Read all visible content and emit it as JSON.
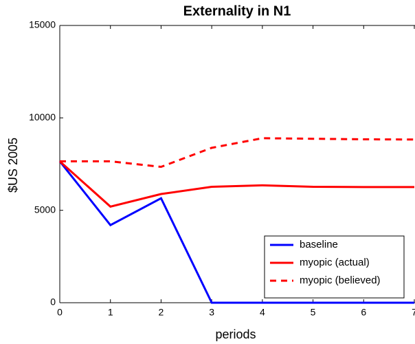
{
  "chart_data": {
    "type": "line",
    "title": "Externality in N1",
    "x_label": "periods",
    "y_label": "$US 2005",
    "x": [
      0,
      1,
      2,
      3,
      4,
      5,
      6,
      7
    ],
    "series": [
      {
        "name": "baseline",
        "color": "#0000ff",
        "dash": "solid",
        "values": [
          7650,
          4200,
          5650,
          0,
          0,
          0,
          0,
          0
        ]
      },
      {
        "name": "myopic (actual)",
        "color": "#ff0000",
        "dash": "solid",
        "values": [
          7650,
          5200,
          5880,
          6270,
          6350,
          6270,
          6260,
          6260
        ]
      },
      {
        "name": "myopic (believed)",
        "color": "#ff0000",
        "dash": "dashed",
        "values": [
          7650,
          7650,
          7350,
          8380,
          8900,
          8870,
          8840,
          8830
        ]
      }
    ],
    "xlim": [
      0,
      7
    ],
    "xticks": [
      0,
      1,
      2,
      3,
      4,
      5,
      6,
      7
    ],
    "ylim": [
      0,
      15000
    ],
    "yticks": [
      0,
      5000,
      10000,
      15000
    ],
    "legend": "lower right"
  }
}
